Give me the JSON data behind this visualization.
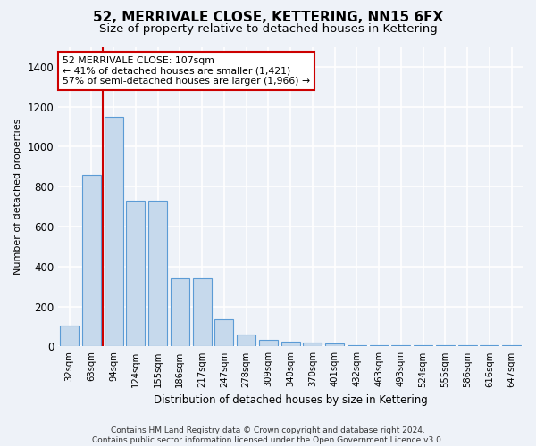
{
  "title": "52, MERRIVALE CLOSE, KETTERING, NN15 6FX",
  "subtitle": "Size of property relative to detached houses in Kettering",
  "xlabel": "Distribution of detached houses by size in Kettering",
  "ylabel": "Number of detached properties",
  "footnote": "Contains HM Land Registry data © Crown copyright and database right 2024.\nContains public sector information licensed under the Open Government Licence v3.0.",
  "bins": [
    "32sqm",
    "63sqm",
    "94sqm",
    "124sqm",
    "155sqm",
    "186sqm",
    "217sqm",
    "247sqm",
    "278sqm",
    "309sqm",
    "340sqm",
    "370sqm",
    "401sqm",
    "432sqm",
    "463sqm",
    "493sqm",
    "524sqm",
    "555sqm",
    "586sqm",
    "616sqm",
    "647sqm"
  ],
  "values": [
    105,
    860,
    1150,
    730,
    730,
    340,
    340,
    135,
    60,
    35,
    25,
    20,
    15,
    8,
    8,
    8,
    8,
    8,
    8,
    8,
    8
  ],
  "bar_color": "#c6d9ec",
  "bar_edge_color": "#5b9bd5",
  "annotation_box_color": "#cc0000",
  "annotation_text": "52 MERRIVALE CLOSE: 107sqm\n← 41% of detached houses are smaller (1,421)\n57% of semi-detached houses are larger (1,966) →",
  "red_line_x": 1.5,
  "ylim": [
    0,
    1500
  ],
  "yticks": [
    0,
    200,
    400,
    600,
    800,
    1000,
    1200,
    1400
  ],
  "background_color": "#eef2f8",
  "plot_background": "#eef2f8",
  "grid_color": "#ffffff",
  "title_fontsize": 11,
  "subtitle_fontsize": 9.5
}
